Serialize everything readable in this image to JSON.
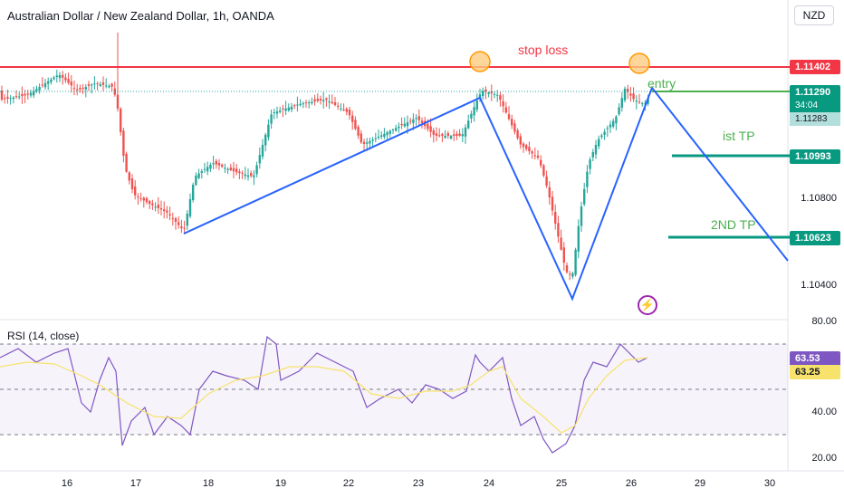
{
  "header": {
    "title": "Australian Dollar / New Zealand Dollar, 1h, OANDA",
    "currency_button": "NZD"
  },
  "price_axis": {
    "labels": [
      "1.10800",
      "1.10400"
    ]
  },
  "price_tags": {
    "stop": "1.11402",
    "last": "1.11290",
    "countdown": "34:04",
    "prev": "1.11283",
    "tp1": "1.10993",
    "tp2": "1.10623"
  },
  "annotations": {
    "stop_loss": "stop loss",
    "entry": "entry",
    "tp1": "ist TP",
    "tp2": "2ND TP"
  },
  "time_axis": [
    "16",
    "17",
    "18",
    "19",
    "22",
    "23",
    "24",
    "25",
    "26",
    "29",
    "30"
  ],
  "rsi": {
    "title": "RSI (14, close)",
    "axis_labels": [
      "80.00",
      "40.00",
      "20.00"
    ],
    "value": "63.53",
    "ma_value": "63.25"
  },
  "colors": {
    "up": "#26a69a",
    "down": "#ef5350",
    "stop_line": "#f23645",
    "tp_line": "#089981",
    "pattern": "#2962ff",
    "rsi": "#7e57c2",
    "rsi_ma": "#f7e36b",
    "text_red": "#f23645",
    "text_green": "#4caf50"
  }
}
